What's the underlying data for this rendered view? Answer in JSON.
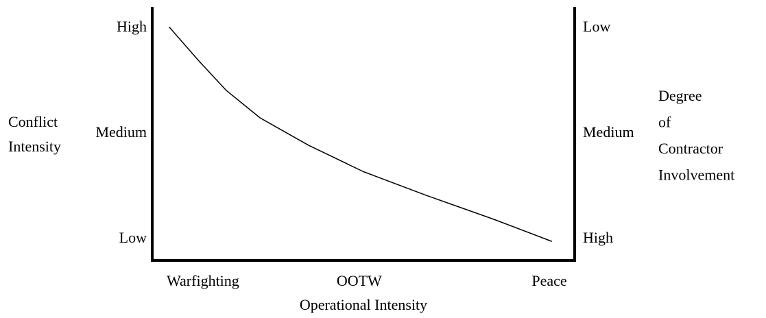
{
  "chart_data": {
    "type": "line",
    "ylabel": [
      "Conflict",
      "Intensity"
    ],
    "y2label": [
      "Degree",
      "of",
      "Contractor",
      "Involvement"
    ],
    "xlabel": "Operational Intensity",
    "xlim": [
      0,
      1
    ],
    "xticks": [
      {
        "value": 0.12,
        "label": "Warfighting"
      },
      {
        "value": 0.49,
        "label": "OOTW"
      },
      {
        "value": 0.94,
        "label": "Peace"
      }
    ],
    "ylim": [
      -0.2,
      2.2
    ],
    "yticks": [
      {
        "value": 0,
        "label": "Low"
      },
      {
        "value": 1,
        "label": "Medium"
      },
      {
        "value": 2,
        "label": "High"
      }
    ],
    "y2lim": [
      2.2,
      -0.2
    ],
    "y2ticks": [
      {
        "value": 0,
        "label": "Low"
      },
      {
        "value": 1,
        "label": "Medium"
      },
      {
        "value": 2,
        "label": "High"
      }
    ],
    "grid": false,
    "series": [
      {
        "color": "#000000",
        "x": [
          0.04,
          0.11,
          0.175,
          0.255,
          0.37,
          0.5,
          0.646,
          0.808,
          0.946
        ],
        "values": [
          2.01,
          1.69,
          1.41,
          1.15,
          0.89,
          0.64,
          0.42,
          0.19,
          -0.02
        ]
      }
    ]
  }
}
